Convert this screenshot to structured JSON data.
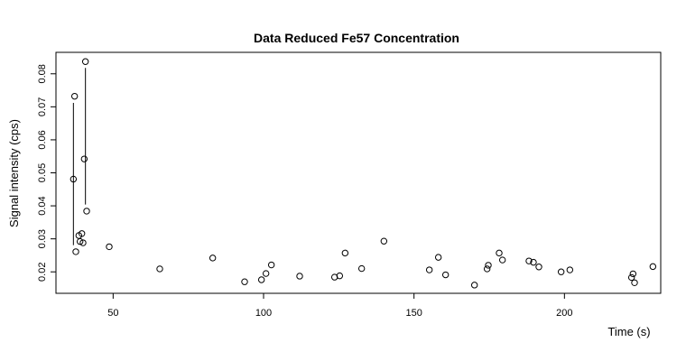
{
  "chart_data": {
    "type": "scatter",
    "title": "Data Reduced Fe57 Concentration",
    "xlabel": "Time (s)",
    "ylabel": "Signal intensity (cps)",
    "xlim": [
      31,
      232
    ],
    "ylim": [
      0.0135,
      0.0865
    ],
    "x_ticks": [
      50,
      100,
      150,
      200
    ],
    "y_ticks": [
      0.02,
      0.03,
      0.04,
      0.05,
      0.06,
      0.07,
      0.08
    ],
    "grid": false,
    "points": [
      {
        "x": 36.8,
        "y": 0.0481
      },
      {
        "x": 37.2,
        "y": 0.0732
      },
      {
        "x": 37.6,
        "y": 0.0261
      },
      {
        "x": 38.6,
        "y": 0.031
      },
      {
        "x": 39.0,
        "y": 0.0292
      },
      {
        "x": 39.6,
        "y": 0.0316
      },
      {
        "x": 40.0,
        "y": 0.0288
      },
      {
        "x": 40.4,
        "y": 0.0542
      },
      {
        "x": 40.8,
        "y": 0.0837
      },
      {
        "x": 41.2,
        "y": 0.0384
      },
      {
        "x": 48.7,
        "y": 0.0276
      },
      {
        "x": 65.5,
        "y": 0.0209
      },
      {
        "x": 83.1,
        "y": 0.0242
      },
      {
        "x": 93.7,
        "y": 0.017
      },
      {
        "x": 99.3,
        "y": 0.0176
      },
      {
        "x": 100.8,
        "y": 0.0195
      },
      {
        "x": 102.6,
        "y": 0.0221
      },
      {
        "x": 112.0,
        "y": 0.0187
      },
      {
        "x": 123.6,
        "y": 0.0184
      },
      {
        "x": 125.3,
        "y": 0.0188
      },
      {
        "x": 127.1,
        "y": 0.0257
      },
      {
        "x": 132.6,
        "y": 0.021
      },
      {
        "x": 140.0,
        "y": 0.0293
      },
      {
        "x": 155.1,
        "y": 0.0206
      },
      {
        "x": 158.1,
        "y": 0.0244
      },
      {
        "x": 160.5,
        "y": 0.0191
      },
      {
        "x": 170.1,
        "y": 0.016
      },
      {
        "x": 174.3,
        "y": 0.0209
      },
      {
        "x": 174.7,
        "y": 0.022
      },
      {
        "x": 178.3,
        "y": 0.0257
      },
      {
        "x": 179.4,
        "y": 0.0236
      },
      {
        "x": 188.2,
        "y": 0.0233
      },
      {
        "x": 189.7,
        "y": 0.0229
      },
      {
        "x": 191.5,
        "y": 0.0215
      },
      {
        "x": 198.9,
        "y": 0.02
      },
      {
        "x": 201.8,
        "y": 0.0206
      },
      {
        "x": 222.3,
        "y": 0.0183
      },
      {
        "x": 222.8,
        "y": 0.0194
      },
      {
        "x": 223.3,
        "y": 0.0167
      },
      {
        "x": 229.4,
        "y": 0.0216
      }
    ],
    "segments": [
      {
        "x": 36.8,
        "y1": 0.0712,
        "y2": 0.0281
      },
      {
        "x": 40.8,
        "y1": 0.0818,
        "y2": 0.0404
      }
    ]
  }
}
